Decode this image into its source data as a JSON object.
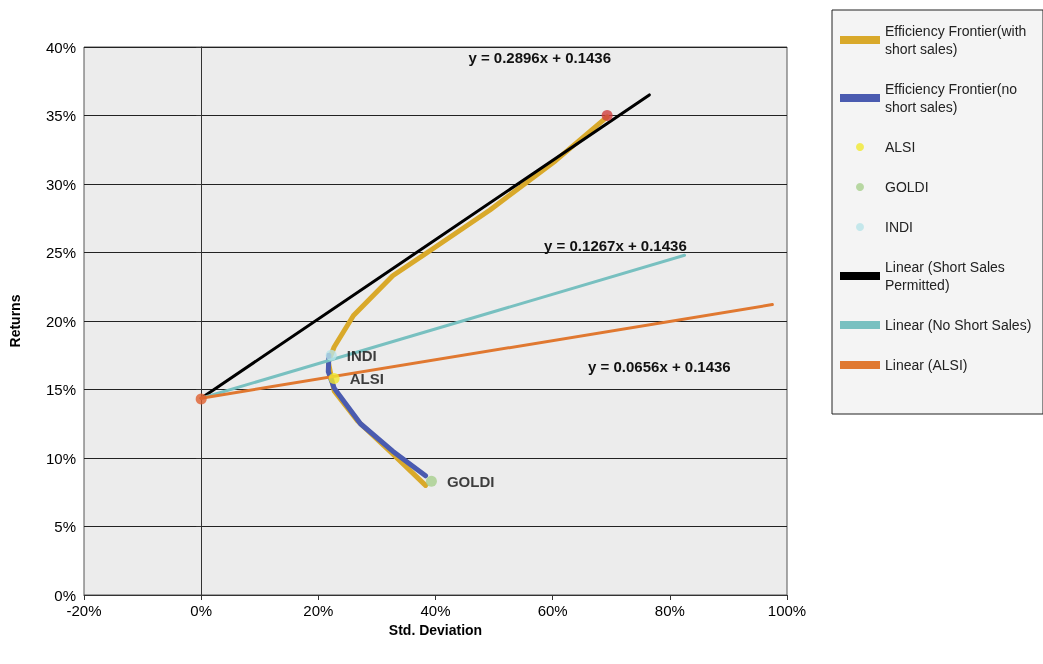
{
  "chart_data": {
    "type": "line",
    "xlabel": "Std. Deviation",
    "ylabel": "Returns",
    "xlim": [
      -20,
      100
    ],
    "xticks": [
      {
        "value": -20,
        "label": "-20%"
      },
      {
        "value": 0,
        "label": "0%"
      },
      {
        "value": 20,
        "label": "20%"
      },
      {
        "value": 40,
        "label": "40%"
      },
      {
        "value": 60,
        "label": "60%"
      },
      {
        "value": 80,
        "label": "80%"
      },
      {
        "value": 100,
        "label": "100%"
      }
    ],
    "ylim": [
      0,
      40
    ],
    "yticks": [
      {
        "value": 0,
        "label": "0%"
      },
      {
        "value": 5,
        "label": "5%"
      },
      {
        "value": 10,
        "label": "10%"
      },
      {
        "value": 15,
        "label": "15%"
      },
      {
        "value": 20,
        "label": "20%"
      },
      {
        "value": 25,
        "label": "25%"
      },
      {
        "value": 30,
        "label": "30%"
      },
      {
        "value": 35,
        "label": "35%"
      },
      {
        "value": 40,
        "label": "40%"
      }
    ],
    "grid": "y",
    "legend": "right",
    "series": [
      {
        "name": "Efficiency Frontier(with short sales)",
        "color": "#d9a92a",
        "x": [
          38.3,
          32.7,
          26.7,
          22.7,
          21.7,
          22.7,
          26.0,
          32.7,
          39.3,
          49.3,
          60.5,
          69.3
        ],
        "values": [
          8.0,
          10.3,
          12.7,
          14.9,
          17.0,
          18.1,
          20.4,
          23.3,
          25.2,
          28.1,
          31.7,
          34.9
        ]
      },
      {
        "name": "Efficiency Frontier(no short sales)",
        "color": "#4a5bb0",
        "x": [
          21.8,
          21.7,
          22.7,
          27.2,
          32.7,
          38.3
        ],
        "values": [
          17.5,
          16.3,
          15.1,
          12.5,
          10.5,
          8.7
        ]
      },
      {
        "name": "ALSI",
        "type": "scatter",
        "marker": "circle",
        "color": "#f0e830",
        "x": [
          22.7
        ],
        "values": [
          15.8
        ]
      },
      {
        "name": "GOLDI",
        "type": "scatter",
        "marker": "circle",
        "color": "#a8d08d",
        "x": [
          39.3
        ],
        "values": [
          8.3
        ]
      },
      {
        "name": "INDI",
        "type": "scatter",
        "marker": "circle",
        "color": "#b8e4e8",
        "x": [
          22.2
        ],
        "values": [
          17.5
        ]
      },
      {
        "name": "Linear (Short Sales Permitted)",
        "color": "#000000",
        "x": [
          0,
          76.5
        ],
        "values": [
          14.36,
          36.5
        ]
      },
      {
        "name": "Linear (No Short Sales)",
        "color": "#78c0c0",
        "x": [
          0,
          82.5
        ],
        "values": [
          14.36,
          24.8
        ]
      },
      {
        "name": "Linear (ALSI)",
        "color": "#e07830",
        "x": [
          0,
          97.5
        ],
        "values": [
          14.36,
          21.2
        ]
      },
      {
        "type": "scatter",
        "marker": "circle",
        "color": "#d04040",
        "x": [
          69.3
        ],
        "values": [
          35.0
        ]
      },
      {
        "type": "scatter",
        "marker": "circle",
        "color": "#e06030",
        "x": [
          0
        ],
        "values": [
          14.3
        ]
      }
    ],
    "annotations": [
      "y = 0.2896x + 0.1436",
      "y = 0.1267x + 0.1436",
      "y = 0.0656x + 0.1436"
    ]
  }
}
